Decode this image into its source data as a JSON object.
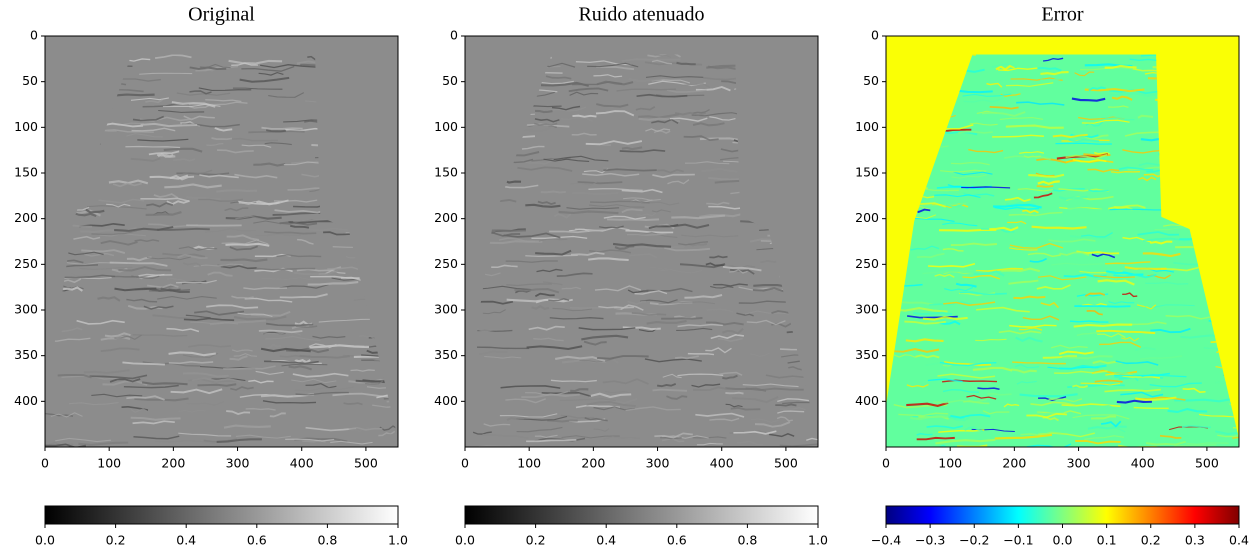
{
  "chart_data": [
    {
      "type": "image",
      "title": "Original",
      "colormap": "gray",
      "xlim": [
        0,
        550
      ],
      "ylim": [
        450,
        0
      ],
      "xticks": [
        0,
        100,
        200,
        300,
        400,
        500
      ],
      "yticks": [
        0,
        50,
        100,
        150,
        200,
        250,
        300,
        350,
        400
      ],
      "clim": [
        0,
        1
      ],
      "cticks": [
        {
          "value": 0,
          "label": "0.0"
        },
        0.2,
        0.4,
        0.6,
        0.8,
        {
          "value": 1,
          "label": "1.0"
        }
      ]
    },
    {
      "type": "image",
      "title": "Ruido atenuado",
      "colormap": "gray",
      "xlim": [
        0,
        550
      ],
      "ylim": [
        450,
        0
      ],
      "xticks": [
        0,
        100,
        200,
        300,
        400,
        500
      ],
      "yticks": [
        0,
        50,
        100,
        150,
        200,
        250,
        300,
        350,
        400
      ],
      "clim": [
        0,
        1
      ],
      "cticks": [
        {
          "value": 0,
          "label": "0.0"
        },
        0.2,
        0.4,
        0.6,
        0.8,
        {
          "value": 1,
          "label": "1.0"
        }
      ]
    },
    {
      "type": "image",
      "title": "Error",
      "colormap": "jet",
      "xlim": [
        0,
        550
      ],
      "ylim": [
        450,
        0
      ],
      "xticks": [
        0,
        100,
        200,
        300,
        400,
        500
      ],
      "yticks": [
        0,
        50,
        100,
        150,
        200,
        250,
        300,
        350,
        400
      ],
      "clim": [
        -0.4,
        0.4
      ],
      "cticks": [
        {
          "value": -0.4,
          "label": "−0.4"
        },
        {
          "value": -0.3,
          "label": "−0.3"
        },
        {
          "value": -0.2,
          "label": "−0.2"
        },
        {
          "value": -0.1,
          "label": "−0.1"
        },
        {
          "value": 0,
          "label": "0.0"
        },
        0.1,
        0.2,
        0.3,
        0.4
      ]
    }
  ]
}
